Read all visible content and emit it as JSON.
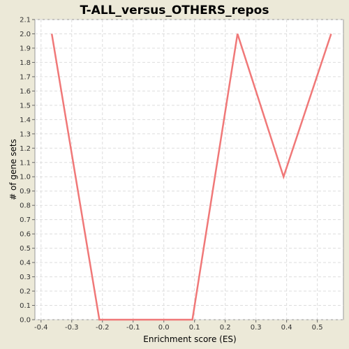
{
  "chart_data": {
    "type": "line",
    "title": "T-ALL_versus_OTHERS_repos",
    "xlabel": "Enrichment score (ES)",
    "ylabel": "# of gene sets",
    "xlim": [
      -0.42,
      0.585
    ],
    "ylim": [
      0.0,
      2.1
    ],
    "x_ticks": [
      "-0.4",
      "-0.3",
      "-0.2",
      "-0.1",
      "0.0",
      "0.1",
      "0.2",
      "0.3",
      "0.4",
      "0.5"
    ],
    "y_ticks": [
      "0.0",
      "0.1",
      "0.2",
      "0.3",
      "0.4",
      "0.5",
      "0.6",
      "0.7",
      "0.8",
      "0.9",
      "1.0",
      "1.1",
      "1.2",
      "1.3",
      "1.4",
      "1.5",
      "1.6",
      "1.7",
      "1.8",
      "1.9",
      "2.0",
      "2.1"
    ],
    "grid": true,
    "series": [
      {
        "color": "#f07878",
        "x": [
          -0.365,
          -0.21,
          0.093,
          0.24,
          0.39,
          0.545
        ],
        "y": [
          2.0,
          0.0,
          0.0,
          2.0,
          1.0,
          2.0
        ]
      }
    ]
  }
}
